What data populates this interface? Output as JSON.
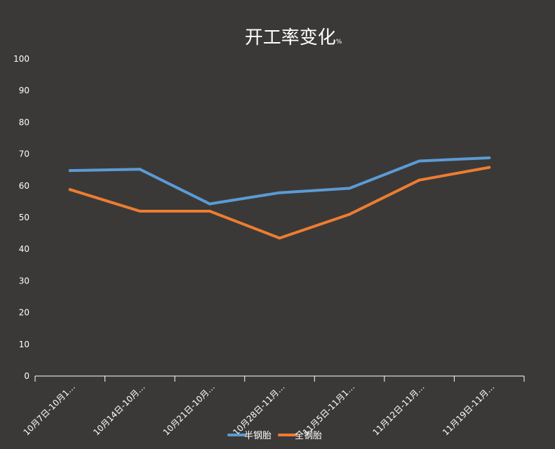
{
  "chart_data": {
    "type": "line",
    "title": "开工率变化",
    "title_unit": "%",
    "categories": [
      "10月7日-10月1…",
      "10月14日-10月…",
      "10月21日-10月…",
      "10月28日-11月…",
      "11月5日-11月1…",
      "11月12日-11月…",
      "11月19日-11月…"
    ],
    "series": [
      {
        "name": "半钢胎",
        "color": "#5b9bd5",
        "values": [
          64.8,
          65.2,
          54.3,
          57.8,
          59.2,
          67.8,
          68.8
        ]
      },
      {
        "name": "全钢胎",
        "color": "#ed7d31",
        "values": [
          58.8,
          52.0,
          52.0,
          43.5,
          51.0,
          61.8,
          65.8
        ]
      }
    ],
    "y_ticks": [
      "0",
      "10",
      "20",
      "30",
      "40",
      "50",
      "60",
      "70",
      "80",
      "90",
      "100"
    ],
    "ylim": [
      0,
      100
    ],
    "grid": false,
    "legend_position": "bottom"
  },
  "colors": {
    "background": "#3b3937",
    "axis": "#ffffff",
    "text": "#ffffff"
  }
}
